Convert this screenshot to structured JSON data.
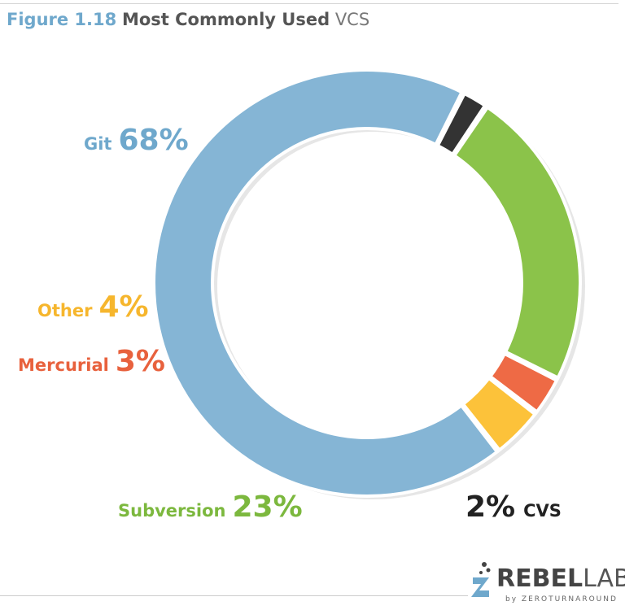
{
  "header": {
    "figure_label": "Figure 1.18",
    "title_main": "Most Commonly Used",
    "title_tail": "VCS"
  },
  "chart_data": {
    "type": "pie",
    "donut": true,
    "title": "Most Commonly Used VCS",
    "slices": [
      {
        "label": "Git",
        "value": 68,
        "value_label": "68%",
        "color": "#85b5d5"
      },
      {
        "label": "CVS",
        "value": 2,
        "value_label": "2%",
        "color": "#333333"
      },
      {
        "label": "Subversion",
        "value": 23,
        "value_label": "23%",
        "color": "#8bc34a"
      },
      {
        "label": "Mercurial",
        "value": 3,
        "value_label": "3%",
        "color": "#ee6a45"
      },
      {
        "label": "Other",
        "value": 4,
        "value_label": "4%",
        "color": "#fcc23a"
      }
    ],
    "label_colors": {
      "Git": "#6fa8cc",
      "Other": "#f6b62d",
      "Mercurial": "#e8613d",
      "Subversion": "#7cb83e",
      "CVS": "#222222"
    }
  },
  "logo": {
    "word_rebel": "REBEL",
    "word_labs": "LABS",
    "subtitle": "by ZEROTURNAROUND"
  }
}
